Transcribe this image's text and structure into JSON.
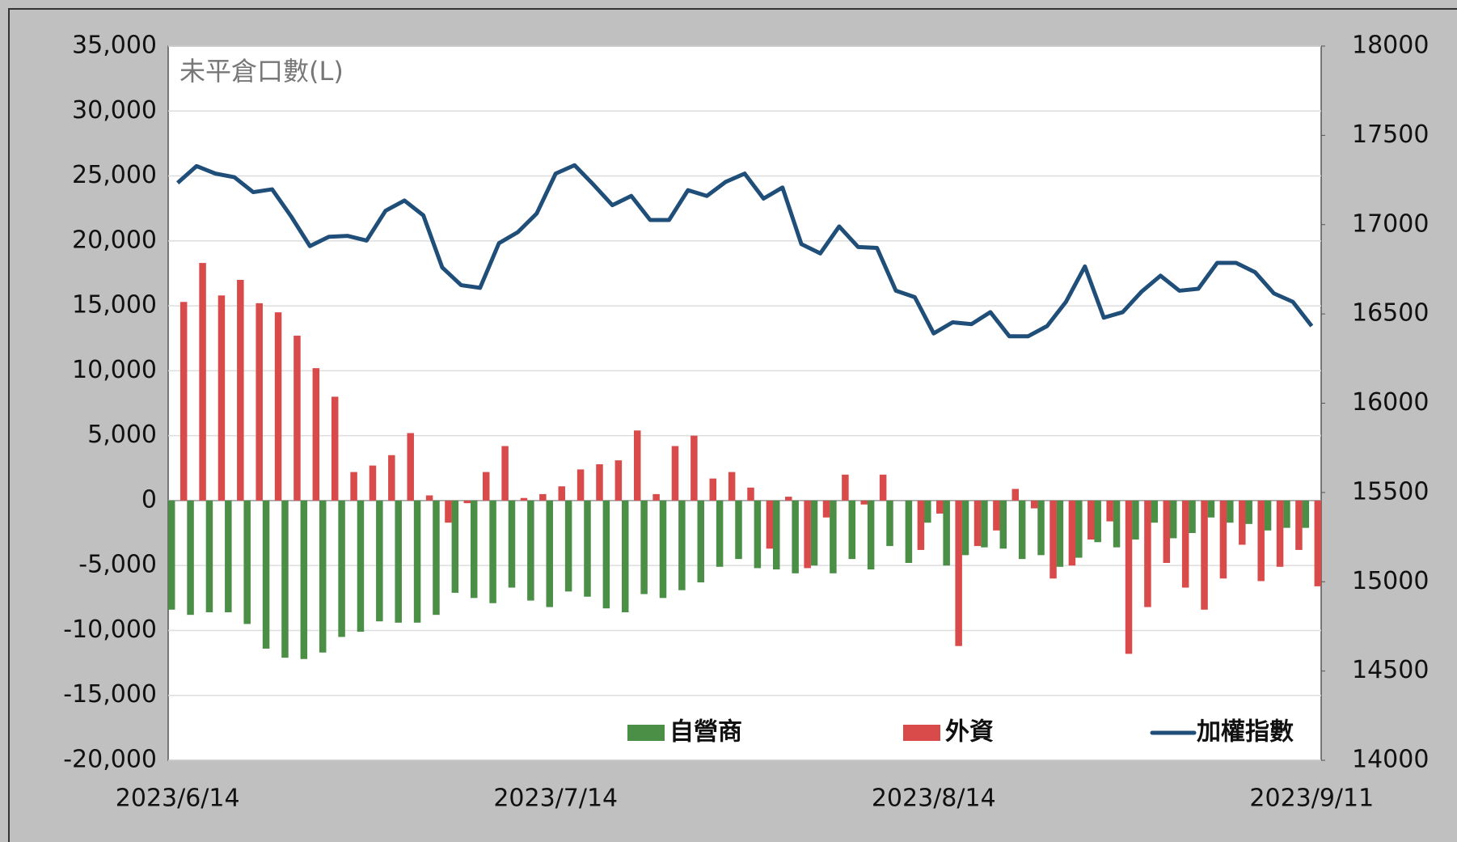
{
  "chart_data": {
    "type": "bar_line",
    "title": "未平倉口數(L)",
    "categories": [
      "2023/6/14",
      null,
      null,
      null,
      null,
      null,
      null,
      null,
      null,
      null,
      null,
      null,
      null,
      null,
      null,
      null,
      null,
      null,
      null,
      null,
      "2023/7/14",
      null,
      null,
      null,
      null,
      null,
      null,
      null,
      null,
      null,
      null,
      null,
      null,
      null,
      null,
      null,
      null,
      null,
      null,
      null,
      "2023/8/14",
      null,
      null,
      null,
      null,
      null,
      null,
      null,
      null,
      null,
      null,
      null,
      null,
      null,
      null,
      null,
      null,
      null,
      null,
      null,
      "2023/9/11"
    ],
    "series": [
      {
        "name": "自營商",
        "color": "#4b8f47",
        "type": "bar",
        "values": [
          -8400,
          -8800,
          -8600,
          -8600,
          -9500,
          -11400,
          -12100,
          -12200,
          -11700,
          -10500,
          -10100,
          -9300,
          -9400,
          -9400,
          -8800,
          -7100,
          -7500,
          -7900,
          -6700,
          -7700,
          -8200,
          -7000,
          -7400,
          -8300,
          -8600,
          -7200,
          -7500,
          -6900,
          -6300,
          -5100,
          -4500,
          -5200,
          -5300,
          -5600,
          -5000,
          -5600,
          -4500,
          -5300,
          -3500,
          -4800,
          -1700,
          -5000,
          -4200,
          -3600,
          -3700,
          -4500,
          -4200,
          -5100,
          -4400,
          -3200,
          -3600,
          -3000,
          -1700,
          -2900,
          -2500,
          -1300,
          -1700,
          -1800,
          -2300,
          -2100,
          -2100
        ]
      },
      {
        "name": "外資",
        "color": "#d94b4b",
        "type": "bar",
        "values": [
          15300,
          18300,
          15800,
          17000,
          15200,
          14500,
          12700,
          10200,
          8000,
          2200,
          2700,
          3500,
          5200,
          400,
          -1700,
          -200,
          2200,
          4200,
          200,
          500,
          1100,
          2400,
          2800,
          3100,
          5400,
          500,
          4200,
          5000,
          1700,
          2200,
          1000,
          -3700,
          300,
          -5200,
          -1300,
          2000,
          -300,
          2000,
          0,
          -3800,
          -1000,
          -11200,
          -3500,
          -2300,
          900,
          -600,
          -6000,
          -5000,
          -3000,
          -1600,
          -11800,
          -8200,
          -4800,
          -6700,
          -8400,
          -6000,
          -3400,
          -6200,
          -5100,
          -3800,
          -6600
        ]
      },
      {
        "name": "加權指數",
        "color": "#1f4e79",
        "type": "line",
        "axis": "y2",
        "values": [
          17234,
          17328,
          17286,
          17266,
          17182,
          17198,
          17047,
          16880,
          16932,
          16937,
          16911,
          17078,
          17135,
          17052,
          16760,
          16661,
          16646,
          16896,
          16958,
          17063,
          17286,
          17333,
          17224,
          17109,
          17161,
          17026,
          17026,
          17193,
          17161,
          17240,
          17286,
          17146,
          17208,
          16891,
          16839,
          16990,
          16875,
          16870,
          16630,
          16594,
          16391,
          16453,
          16443,
          16510,
          16375,
          16375,
          16432,
          16568,
          16766,
          16479,
          16510,
          16625,
          16714,
          16630,
          16641,
          16786,
          16786,
          16734,
          16615,
          16568,
          16432
        ]
      }
    ],
    "ylim": [
      -20000,
      35000
    ],
    "yticks": [
      {
        "value": -20000,
        "label": "-20,000"
      },
      {
        "value": -15000,
        "label": "-15,000"
      },
      {
        "value": -10000,
        "label": "-10,000"
      },
      {
        "value": -5000,
        "label": "-5,000"
      },
      0,
      {
        "value": 5000,
        "label": "5,000"
      },
      {
        "value": 10000,
        "label": "10,000"
      },
      {
        "value": 15000,
        "label": "15,000"
      },
      {
        "value": 20000,
        "label": "20,000"
      },
      {
        "value": 25000,
        "label": "25,000"
      },
      {
        "value": 30000,
        "label": "30,000"
      },
      {
        "value": 35000,
        "label": "35,000"
      }
    ],
    "y2lim": [
      14000,
      18000
    ],
    "y2ticks": [
      14000,
      14500,
      15000,
      15500,
      16000,
      16500,
      17000,
      17500,
      18000
    ],
    "negative_tick_color": "#ff0000",
    "grid": true,
    "legend": "bottom"
  }
}
